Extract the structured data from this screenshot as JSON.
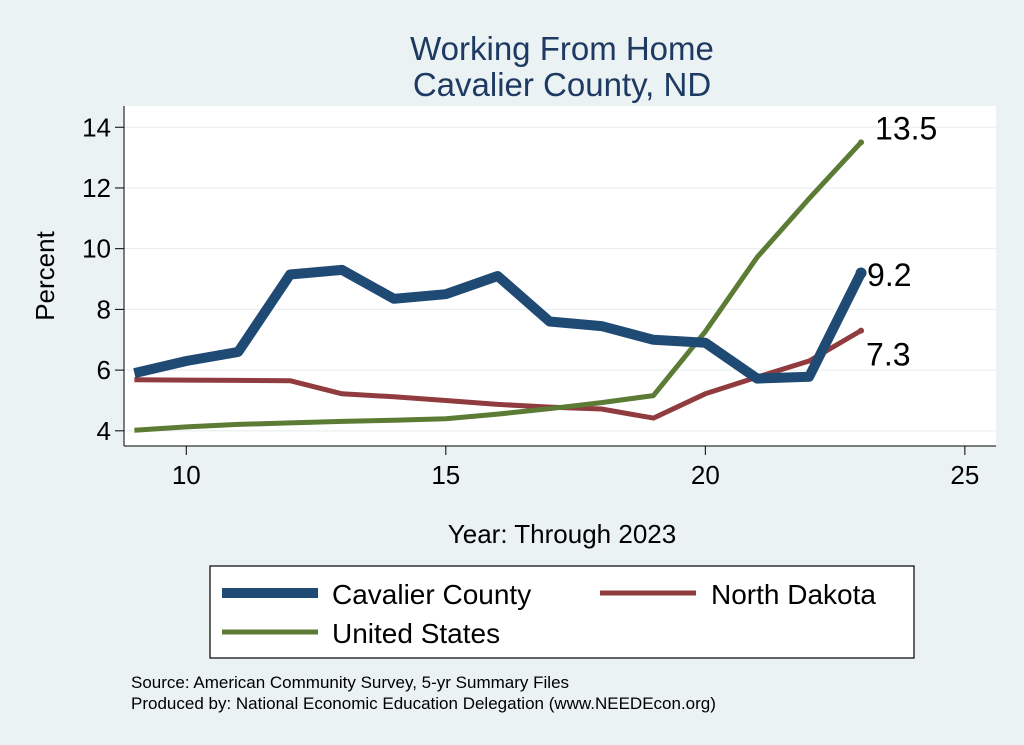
{
  "chart_data": {
    "type": "line",
    "title": [
      "Working From Home",
      "Cavalier County, ND"
    ],
    "xlabel": "Year: Through 2023",
    "ylabel": "Percent",
    "xlim": [
      8.8,
      25.6
    ],
    "ylim": [
      3.5,
      14.7
    ],
    "xticks": [
      10,
      15,
      20,
      25
    ],
    "yticks": [
      4,
      6,
      8,
      10,
      12,
      14
    ],
    "grid": true,
    "legend_position": "bottom",
    "series": [
      {
        "name": "Cavalier County",
        "color": "#1f4a73",
        "line_width": 10,
        "x": [
          9,
          10,
          11,
          12,
          13,
          14,
          15,
          16,
          17,
          18,
          19,
          20,
          21,
          22,
          23
        ],
        "y": [
          5.9,
          6.3,
          6.6,
          9.15,
          9.3,
          8.35,
          8.5,
          9.1,
          7.6,
          7.45,
          7.0,
          6.9,
          5.72,
          5.78,
          9.2
        ],
        "end_label": "9.2"
      },
      {
        "name": "North Dakota",
        "color": "#903c3f",
        "line_width": 5,
        "x": [
          9,
          10,
          11,
          12,
          13,
          14,
          15,
          16,
          17,
          18,
          19,
          20,
          21,
          22,
          23
        ],
        "y": [
          5.68,
          5.67,
          5.66,
          5.65,
          5.22,
          5.12,
          5.0,
          4.87,
          4.78,
          4.72,
          4.42,
          5.22,
          5.77,
          6.3,
          7.3
        ],
        "end_label": "7.3"
      },
      {
        "name": "United States",
        "color": "#5c7b34",
        "line_width": 5,
        "x": [
          9,
          10,
          11,
          12,
          13,
          14,
          15,
          16,
          17,
          18,
          19,
          20,
          21,
          22,
          23
        ],
        "y": [
          4.02,
          4.13,
          4.21,
          4.26,
          4.31,
          4.35,
          4.4,
          4.55,
          4.73,
          4.93,
          5.16,
          7.27,
          9.72,
          11.65,
          13.5
        ],
        "end_label": "13.5"
      }
    ],
    "legend": {
      "entries": [
        "Cavalier County",
        "North Dakota",
        "United States"
      ]
    },
    "source_lines": [
      "Source: American Community Survey, 5-yr Summary Files",
      "Produced by: National Economic Education Delegation (www.NEEDEcon.org)"
    ]
  }
}
